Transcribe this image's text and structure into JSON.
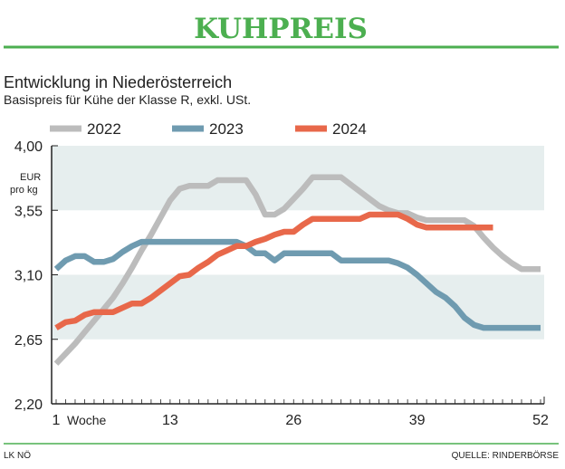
{
  "header": {
    "title": "KUHPREIS",
    "subtitle": "Entwicklung in Niederösterreich",
    "description": "Basispreis für Kühe der Klasse R, exkl. USt."
  },
  "footer": {
    "left": "LK NÖ",
    "right": "QUELLE: RINDERBÖRSE"
  },
  "colors": {
    "title": "#4caf50",
    "band": "#e6eeee",
    "2022": "#bcbcbc",
    "2023": "#6f9bb0",
    "2024": "#e8684a"
  },
  "chart_data": {
    "type": "line",
    "title": "KUHPREIS",
    "ylabel": "EUR pro kg",
    "xlabel": "Woche",
    "ylim": [
      2.2,
      4.0
    ],
    "xlim": [
      1,
      52
    ],
    "yticks": [
      "4,00",
      "3,55",
      "3,10",
      "2,65",
      "2,20"
    ],
    "ytick_values": [
      4.0,
      3.55,
      3.1,
      2.65,
      2.2
    ],
    "xticks": [
      "1",
      "13",
      "26",
      "39",
      "52"
    ],
    "xtick_values": [
      1,
      13,
      26,
      39,
      52
    ],
    "legend_position": "top",
    "series": [
      {
        "name": "2022",
        "values": [
          2.48,
          2.55,
          2.62,
          2.7,
          2.78,
          2.86,
          2.94,
          3.04,
          3.15,
          3.27,
          3.38,
          3.5,
          3.62,
          3.7,
          3.72,
          3.72,
          3.72,
          3.76,
          3.76,
          3.76,
          3.76,
          3.66,
          3.52,
          3.52,
          3.56,
          3.63,
          3.7,
          3.78,
          3.78,
          3.78,
          3.78,
          3.73,
          3.68,
          3.63,
          3.58,
          3.55,
          3.53,
          3.53,
          3.5,
          3.48,
          3.48,
          3.48,
          3.48,
          3.48,
          3.44,
          3.36,
          3.29,
          3.23,
          3.18,
          3.14,
          3.14,
          3.14
        ]
      },
      {
        "name": "2023",
        "values": [
          3.14,
          3.2,
          3.23,
          3.23,
          3.19,
          3.19,
          3.21,
          3.26,
          3.3,
          3.33,
          3.33,
          3.33,
          3.33,
          3.33,
          3.33,
          3.33,
          3.33,
          3.33,
          3.33,
          3.33,
          3.3,
          3.25,
          3.25,
          3.2,
          3.25,
          3.25,
          3.25,
          3.25,
          3.25,
          3.25,
          3.2,
          3.2,
          3.2,
          3.2,
          3.2,
          3.2,
          3.18,
          3.15,
          3.1,
          3.04,
          2.98,
          2.94,
          2.88,
          2.8,
          2.75,
          2.73,
          2.73,
          2.73,
          2.73,
          2.73,
          2.73,
          2.73
        ]
      },
      {
        "name": "2024",
        "values": [
          2.73,
          2.77,
          2.78,
          2.82,
          2.84,
          2.84,
          2.84,
          2.87,
          2.9,
          2.9,
          2.94,
          2.99,
          3.04,
          3.09,
          3.1,
          3.15,
          3.19,
          3.24,
          3.27,
          3.3,
          3.3,
          3.33,
          3.35,
          3.38,
          3.4,
          3.4,
          3.45,
          3.49,
          3.49,
          3.49,
          3.49,
          3.49,
          3.49,
          3.52,
          3.52,
          3.52,
          3.52,
          3.49,
          3.45,
          3.43,
          3.43,
          3.43,
          3.43,
          3.43,
          3.43,
          3.43,
          3.43
        ]
      }
    ]
  }
}
